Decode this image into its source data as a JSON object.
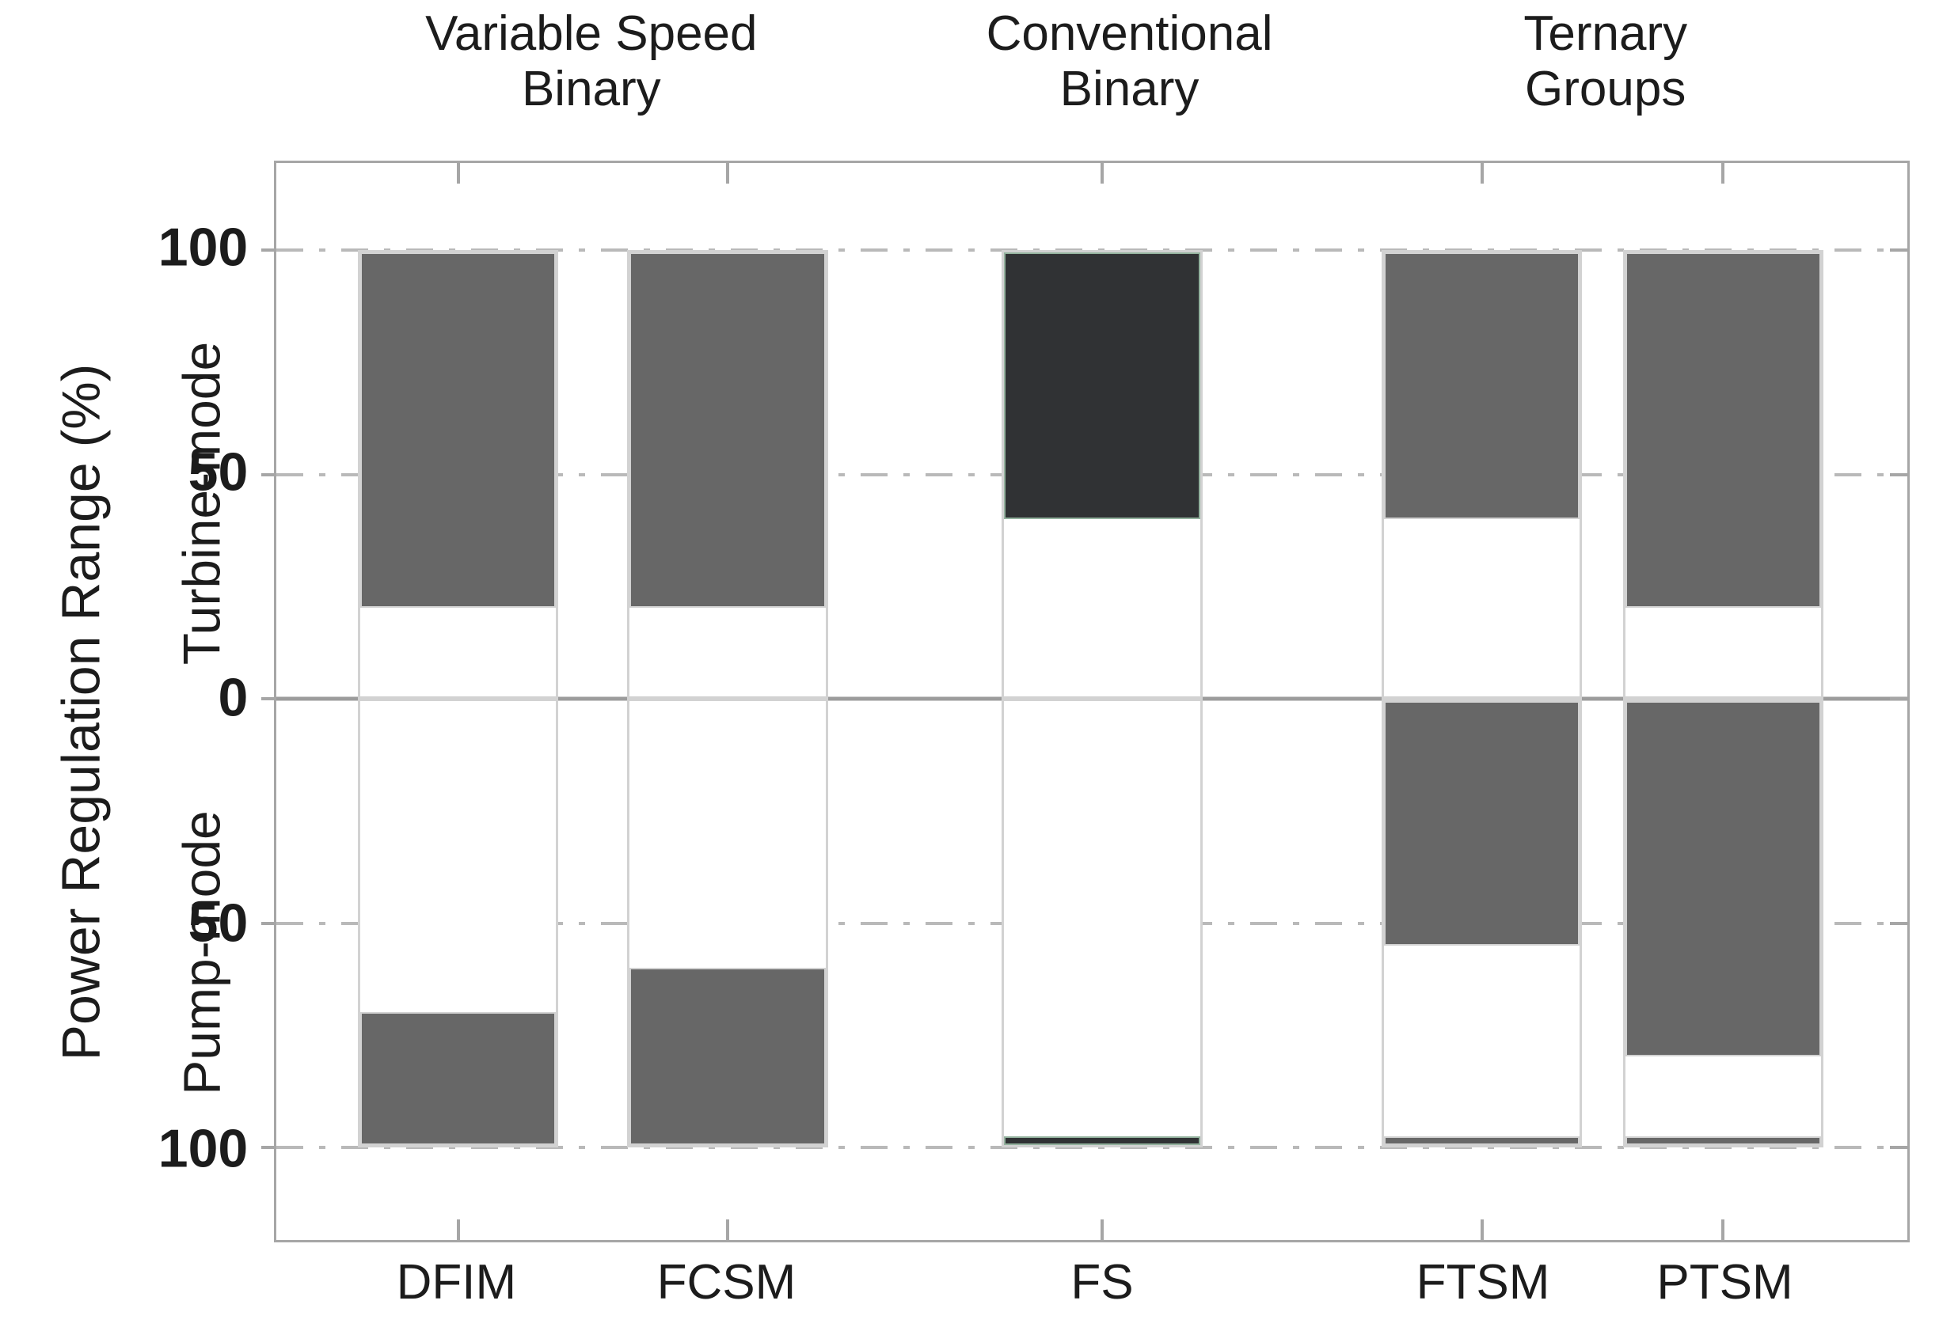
{
  "figure": {
    "y_axis_title": "Power Regulation Range (%)",
    "turbine_mode_label": "Turbine-mode",
    "pump_mode_label": "Pump-mode"
  },
  "chart_data": {
    "type": "bar",
    "title": "",
    "xlabel": "",
    "ylabel": "Power Regulation Range (%)",
    "categories": [
      "DFIM",
      "FCSM",
      "FS",
      "FTSM",
      "PTSM"
    ],
    "groups": [
      {
        "label": "Variable Speed\nBinary",
        "members": [
          "DFIM",
          "FCSM"
        ],
        "center_pct": 19.4
      },
      {
        "label": "Conventional\nBinary",
        "members": [
          "FS"
        ],
        "center_pct": 52.3
      },
      {
        "label": "Ternary\nGroups",
        "members": [
          "FTSM",
          "PTSM"
        ],
        "center_pct": 81.4
      }
    ],
    "series": [
      {
        "category": "DFIM",
        "turbine_range": [
          20,
          100
        ],
        "pump_ranges": [
          [
            70,
            100
          ]
        ],
        "style": "variable"
      },
      {
        "category": "FCSM",
        "turbine_range": [
          20,
          100
        ],
        "pump_ranges": [
          [
            60,
            100
          ]
        ],
        "style": "variable"
      },
      {
        "category": "FS",
        "turbine_range": [
          40,
          100
        ],
        "pump_ranges": [
          [
            98,
            100
          ]
        ],
        "style": "fixed"
      },
      {
        "category": "FTSM",
        "turbine_range": [
          40,
          100
        ],
        "pump_ranges": [
          [
            0,
            55
          ],
          [
            98,
            100
          ]
        ],
        "style": "variable"
      },
      {
        "category": "PTSM",
        "turbine_range": [
          20,
          100
        ],
        "pump_ranges": [
          [
            0,
            80
          ],
          [
            98,
            100
          ]
        ],
        "style": "variable"
      }
    ],
    "y_ticks": [
      {
        "value": 100,
        "label": "100"
      },
      {
        "value": 50,
        "label": "50"
      },
      {
        "value": 0,
        "label": "0"
      },
      {
        "value": -50,
        "label": "50"
      },
      {
        "value": -100,
        "label": "100"
      }
    ],
    "axis": {
      "ylim_top": 119.4,
      "ylim_bottom": -120.6,
      "mode_span": 100,
      "grid_style": "horizontal dash-dot at ±50 and ±100, solid line at 0",
      "legend_position": "none"
    },
    "layout_hints": {
      "x_centers_pct": [
        11.15,
        27.66,
        50.63,
        73.91,
        88.7
      ],
      "bar_width_pct": 12.3
    }
  },
  "colors": {
    "bar_variable_fill": "#676767",
    "bar_fixed_fill": "#303234",
    "bar_fixed_border": "#93b29e",
    "bar_outline": "#d2d2d2",
    "gridline": "#b9b9b9",
    "zero_line": "#9c9c9c",
    "axis_border": "#a6a6a6",
    "text": "#1c1c1c"
  }
}
